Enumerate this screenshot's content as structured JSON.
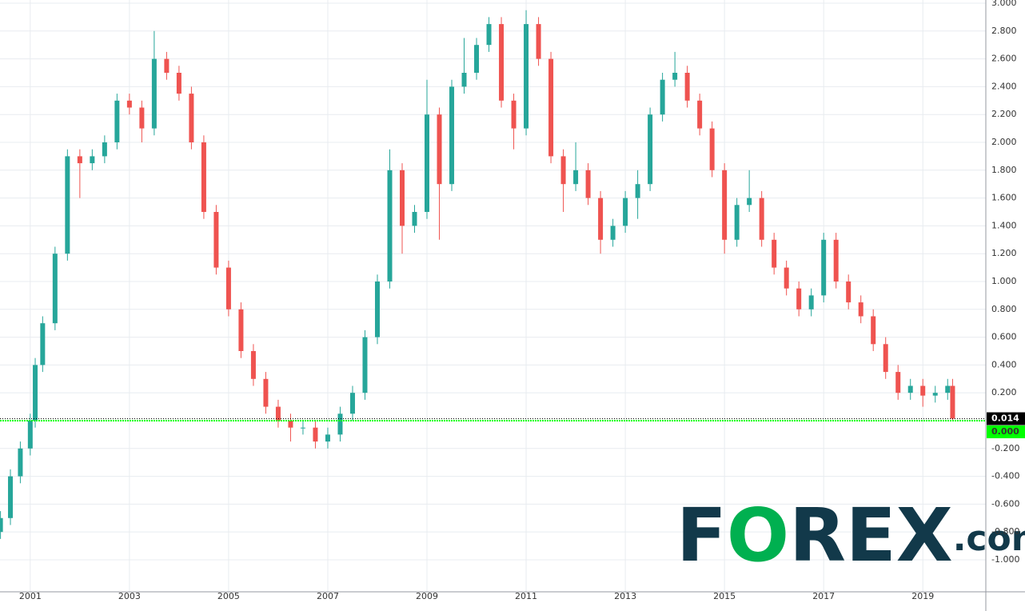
{
  "chart_data": {
    "type": "candlestick",
    "x": [
      2000.4,
      2000.6,
      2000.8,
      2001.0,
      2001.1,
      2001.25,
      2001.5,
      2001.75,
      2002.0,
      2002.25,
      2002.5,
      2002.75,
      2003.0,
      2003.25,
      2003.5,
      2003.75,
      2004.0,
      2004.25,
      2004.5,
      2004.75,
      2005.0,
      2005.25,
      2005.5,
      2005.75,
      2006.0,
      2006.25,
      2006.5,
      2006.75,
      2007.0,
      2007.25,
      2007.5,
      2007.75,
      2008.0,
      2008.25,
      2008.5,
      2008.75,
      2009.0,
      2009.25,
      2009.5,
      2009.75,
      2010.0,
      2010.25,
      2010.5,
      2010.75,
      2011.0,
      2011.25,
      2011.5,
      2011.75,
      2012.0,
      2012.25,
      2012.5,
      2012.75,
      2013.0,
      2013.25,
      2013.5,
      2013.75,
      2014.0,
      2014.25,
      2014.5,
      2014.75,
      2015.0,
      2015.25,
      2015.5,
      2015.75,
      2016.0,
      2016.25,
      2016.5,
      2016.75,
      2017.0,
      2017.25,
      2017.5,
      2017.75,
      2018.0,
      2018.25,
      2018.5,
      2018.75,
      2019.0,
      2019.25,
      2019.5,
      2019.6
    ],
    "open": [
      -0.8,
      -0.7,
      -0.4,
      -0.2,
      0.0,
      0.4,
      0.7,
      1.2,
      1.9,
      1.85,
      1.9,
      2.0,
      2.3,
      2.25,
      2.1,
      2.6,
      2.5,
      2.35,
      2.0,
      1.5,
      1.1,
      0.8,
      0.5,
      0.3,
      0.1,
      0.0,
      -0.05,
      -0.05,
      -0.15,
      -0.1,
      0.05,
      0.2,
      0.6,
      1.0,
      1.8,
      1.4,
      1.5,
      2.2,
      1.7,
      2.4,
      2.5,
      2.7,
      2.85,
      2.3,
      2.1,
      2.85,
      2.6,
      1.9,
      1.7,
      1.8,
      1.6,
      1.3,
      1.4,
      1.6,
      1.7,
      2.2,
      2.45,
      2.5,
      2.3,
      2.1,
      1.8,
      1.3,
      1.55,
      1.6,
      1.3,
      1.1,
      0.95,
      0.8,
      0.9,
      1.3,
      1.0,
      0.85,
      0.75,
      0.55,
      0.35,
      0.2,
      0.25,
      0.18,
      0.2,
      0.25
    ],
    "high": [
      -0.65,
      -0.35,
      -0.15,
      0.05,
      0.45,
      0.75,
      1.25,
      1.95,
      1.95,
      1.95,
      2.05,
      2.35,
      2.35,
      2.3,
      2.8,
      2.65,
      2.55,
      2.4,
      2.05,
      1.55,
      1.15,
      0.85,
      0.55,
      0.35,
      0.15,
      0.05,
      0.0,
      0.0,
      -0.05,
      0.1,
      0.25,
      0.65,
      1.05,
      1.95,
      1.85,
      1.55,
      2.45,
      2.25,
      2.45,
      2.75,
      2.75,
      2.9,
      2.9,
      2.35,
      2.95,
      2.9,
      2.65,
      1.95,
      2.0,
      1.85,
      1.65,
      1.45,
      1.65,
      1.8,
      2.25,
      2.5,
      2.65,
      2.55,
      2.35,
      2.15,
      1.85,
      1.6,
      1.8,
      1.65,
      1.35,
      1.15,
      1.0,
      0.95,
      1.35,
      1.35,
      1.05,
      0.9,
      0.8,
      0.6,
      0.4,
      0.3,
      0.3,
      0.25,
      0.3,
      0.3
    ],
    "low": [
      -0.85,
      -0.75,
      -0.45,
      -0.25,
      -0.05,
      0.35,
      0.65,
      1.15,
      1.6,
      1.8,
      1.85,
      1.95,
      2.2,
      2.0,
      2.05,
      2.45,
      2.3,
      1.95,
      1.45,
      1.05,
      0.75,
      0.45,
      0.25,
      0.05,
      -0.05,
      -0.15,
      -0.1,
      -0.2,
      -0.2,
      -0.15,
      0.0,
      0.15,
      0.55,
      0.95,
      1.2,
      1.35,
      1.45,
      1.3,
      1.65,
      2.35,
      2.45,
      2.65,
      2.25,
      1.95,
      2.05,
      2.55,
      1.85,
      1.5,
      1.65,
      1.55,
      1.2,
      1.25,
      1.35,
      1.45,
      1.65,
      2.15,
      2.4,
      2.25,
      2.05,
      1.75,
      1.2,
      1.25,
      1.5,
      1.25,
      1.05,
      0.9,
      0.75,
      0.75,
      0.85,
      0.95,
      0.8,
      0.7,
      0.5,
      0.3,
      0.15,
      0.15,
      0.1,
      0.13,
      0.15,
      0.0
    ],
    "close": [
      -0.7,
      -0.4,
      -0.2,
      0.0,
      0.4,
      0.7,
      1.2,
      1.9,
      1.85,
      1.9,
      2.0,
      2.3,
      2.25,
      2.1,
      2.6,
      2.5,
      2.35,
      2.0,
      1.5,
      1.1,
      0.8,
      0.5,
      0.3,
      0.1,
      0.0,
      -0.05,
      -0.05,
      -0.15,
      -0.1,
      0.05,
      0.2,
      0.6,
      1.0,
      1.8,
      1.4,
      1.5,
      2.2,
      1.7,
      2.4,
      2.5,
      2.7,
      2.85,
      2.3,
      2.1,
      2.85,
      2.6,
      1.9,
      1.7,
      1.8,
      1.6,
      1.3,
      1.4,
      1.6,
      1.7,
      2.2,
      2.45,
      2.5,
      2.3,
      2.1,
      1.8,
      1.3,
      1.55,
      1.6,
      1.3,
      1.1,
      0.95,
      0.8,
      0.9,
      1.3,
      1.0,
      0.85,
      0.75,
      0.55,
      0.35,
      0.2,
      0.25,
      0.18,
      0.2,
      0.25,
      0.014
    ],
    "up_color": "#26a69a",
    "down_color": "#ef5350",
    "xlim": [
      2000.39,
      2020.27
    ],
    "xticks": [
      2001,
      2003,
      2005,
      2007,
      2009,
      2011,
      2013,
      2015,
      2017,
      2019
    ],
    "ylim": [
      -1.23,
      3.023
    ],
    "yticks": [
      {
        "value": 3,
        "label": "3.000"
      },
      {
        "value": 2.8,
        "label": "2.800"
      },
      {
        "value": 2.6,
        "label": "2.600"
      },
      {
        "value": 2.4,
        "label": "2.400"
      },
      {
        "value": 2.2,
        "label": "2.200"
      },
      {
        "value": 2,
        "label": "2.000"
      },
      {
        "value": 1.8,
        "label": "1.800"
      },
      {
        "value": 1.6,
        "label": "1.600"
      },
      {
        "value": 1.4,
        "label": "1.400"
      },
      {
        "value": 1.2,
        "label": "1.200"
      },
      {
        "value": 1,
        "label": "1.000"
      },
      {
        "value": 0.8,
        "label": "0.800"
      },
      {
        "value": 0.6,
        "label": "0.600"
      },
      {
        "value": 0.4,
        "label": "0.400"
      },
      {
        "value": 0.2,
        "label": "0.200"
      },
      {
        "value": -0.2,
        "label": "-0.200"
      },
      {
        "value": -0.4,
        "label": "-0.400"
      },
      {
        "value": -0.6,
        "label": "-0.600"
      },
      {
        "value": -0.8,
        "label": "-0.800"
      },
      {
        "value": -1,
        "label": "-1.000"
      }
    ],
    "grid": true,
    "reference_line": {
      "value": 0,
      "label": "0.000",
      "color": "#00ff00"
    },
    "last_price": {
      "value": 0.014,
      "label": "0.014",
      "color": "#000000"
    },
    "logo": {
      "parts": [
        "F",
        "O",
        "REX",
        ".com"
      ],
      "color": "#12394a",
      "accent": "#00b050"
    }
  }
}
